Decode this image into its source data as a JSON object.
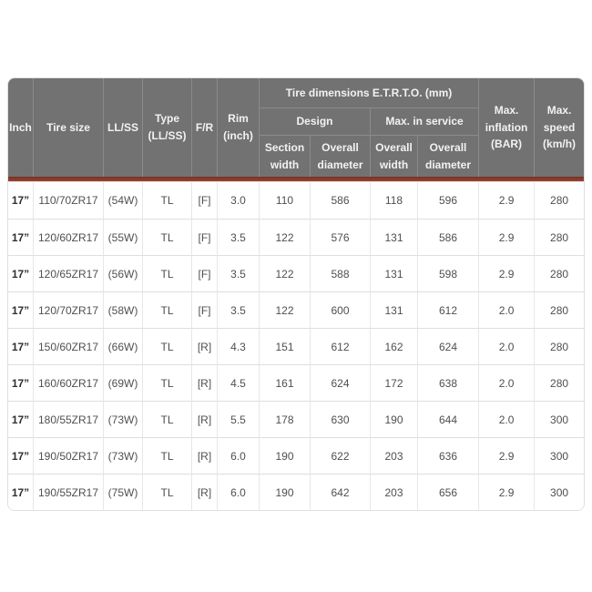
{
  "colors": {
    "header_bg": "#727272",
    "header_text": "#f2f2f2",
    "accent_line": "#8d3d2d",
    "row_divider": "#dedede",
    "body_text": "#4f4f4f"
  },
  "table": {
    "header": {
      "inch": "Inch",
      "tire_size": "Tire size",
      "ll_ss": "LL/SS",
      "type": "Type (LL/SS)",
      "f_r": "F/R",
      "rim": "Rim (inch)",
      "etrto_group": "Tire dimensions E.T.R.T.O. (mm)",
      "design_group": "Design",
      "max_in_service_group": "Max. in service",
      "section_width": "Section width",
      "overall_diameter_design": "Overall diameter",
      "overall_width": "Overall width",
      "overall_diameter_service": "Overall diameter",
      "max_inflation": "Max. inflation (BAR)",
      "max_speed": "Max. speed (km/h)"
    },
    "column_keys": [
      "inch",
      "tire-size",
      "ll-ss",
      "type",
      "f-r",
      "rim",
      "section-width",
      "overall-diameter-design",
      "overall-width",
      "overall-diameter-service",
      "max-inflation",
      "max-speed"
    ],
    "rows": [
      [
        "17”",
        "110/70ZR17",
        "(54W)",
        "TL",
        "[F]",
        "3.0",
        "110",
        "586",
        "118",
        "596",
        "2.9",
        "280"
      ],
      [
        "17”",
        "120/60ZR17",
        "(55W)",
        "TL",
        "[F]",
        "3.5",
        "122",
        "576",
        "131",
        "586",
        "2.9",
        "280"
      ],
      [
        "17”",
        "120/65ZR17",
        "(56W)",
        "TL",
        "[F]",
        "3.5",
        "122",
        "588",
        "131",
        "598",
        "2.9",
        "280"
      ],
      [
        "17”",
        "120/70ZR17",
        "(58W)",
        "TL",
        "[F]",
        "3.5",
        "122",
        "600",
        "131",
        "612",
        "2.0",
        "280"
      ],
      [
        "17”",
        "150/60ZR17",
        "(66W)",
        "TL",
        "[R]",
        "4.3",
        "151",
        "612",
        "162",
        "624",
        "2.0",
        "280"
      ],
      [
        "17”",
        "160/60ZR17",
        "(69W)",
        "TL",
        "[R]",
        "4.5",
        "161",
        "624",
        "172",
        "638",
        "2.0",
        "280"
      ],
      [
        "17”",
        "180/55ZR17",
        "(73W)",
        "TL",
        "[R]",
        "5.5",
        "178",
        "630",
        "190",
        "644",
        "2.0",
        "300"
      ],
      [
        "17”",
        "190/50ZR17",
        "(73W)",
        "TL",
        "[R]",
        "6.0",
        "190",
        "622",
        "203",
        "636",
        "2.9",
        "300"
      ],
      [
        "17”",
        "190/55ZR17",
        "(75W)",
        "TL",
        "[R]",
        "6.0",
        "190",
        "642",
        "203",
        "656",
        "2.9",
        "300"
      ]
    ]
  }
}
